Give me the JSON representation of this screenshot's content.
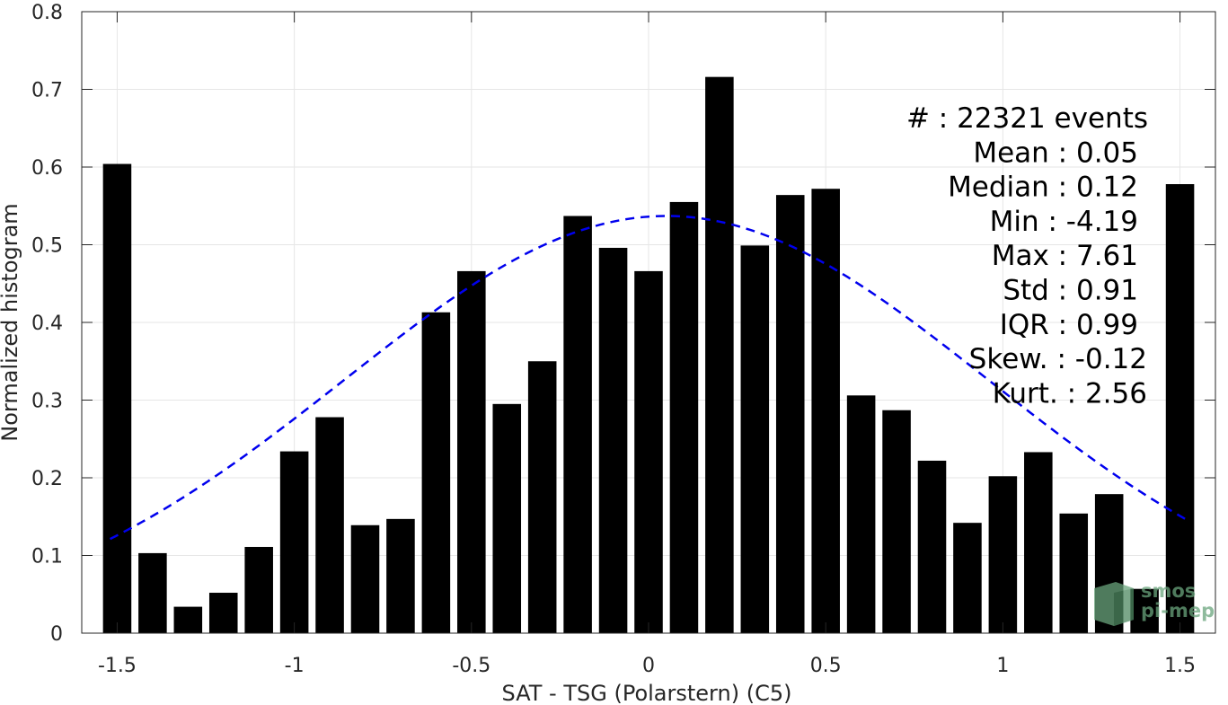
{
  "chart_data": {
    "type": "bar",
    "title": "",
    "xlabel": "SAT - TSG (Polarstern) (C5)",
    "ylabel": "Normalized histogram",
    "xlim": [
      -1.6,
      1.6
    ],
    "ylim": [
      0,
      0.8
    ],
    "grid": true,
    "bar_width": 0.08,
    "bar_color": "#000000",
    "x": [
      -1.5,
      -1.4,
      -1.3,
      -1.2,
      -1.1,
      -1.0,
      -0.9,
      -0.8,
      -0.7,
      -0.6,
      -0.5,
      -0.4,
      -0.3,
      -0.2,
      -0.1,
      0.0,
      0.1,
      0.2,
      0.3,
      0.4,
      0.5,
      0.6,
      0.7,
      0.8,
      0.9,
      1.0,
      1.1,
      1.2,
      1.3,
      1.4,
      1.5
    ],
    "values": [
      0.604,
      0.103,
      0.034,
      0.052,
      0.111,
      0.234,
      0.278,
      0.139,
      0.147,
      0.413,
      0.466,
      0.295,
      0.35,
      0.537,
      0.496,
      0.466,
      0.555,
      0.716,
      0.499,
      0.564,
      0.572,
      0.306,
      0.287,
      0.222,
      0.142,
      0.202,
      0.233,
      0.154,
      0.179,
      0.057,
      0.578
    ],
    "fit_curve": {
      "style": "dashed",
      "color": "#0000ee",
      "x_range": [
        -1.52,
        1.52
      ],
      "mean": 0.05,
      "std": 0.91,
      "peak": 0.537
    },
    "x_ticks": [
      "-1.5",
      "-1",
      "-0.5",
      "0",
      "0.5",
      "1",
      "1.5"
    ],
    "x_tick_values": [
      -1.5,
      -1.0,
      -0.5,
      0.0,
      0.5,
      1.0,
      1.5
    ],
    "y_ticks": [
      "0",
      "0.1",
      "0.2",
      "0.3",
      "0.4",
      "0.5",
      "0.6",
      "0.7",
      "0.8"
    ],
    "y_tick_values": [
      0,
      0.1,
      0.2,
      0.3,
      0.4,
      0.5,
      0.6,
      0.7,
      0.8
    ],
    "annotations": [
      "#  : 22321 events",
      "Mean : 0.05",
      "Median : 0.12",
      "Min : -4.19",
      "Max : 7.61",
      "Std : 0.91",
      "IQR : 0.99",
      "Skew. : -0.12",
      "Kurt. : 2.56"
    ]
  },
  "logo": {
    "line1": "smos",
    "line2": "pi-mep",
    "color": "#6aa57d"
  }
}
